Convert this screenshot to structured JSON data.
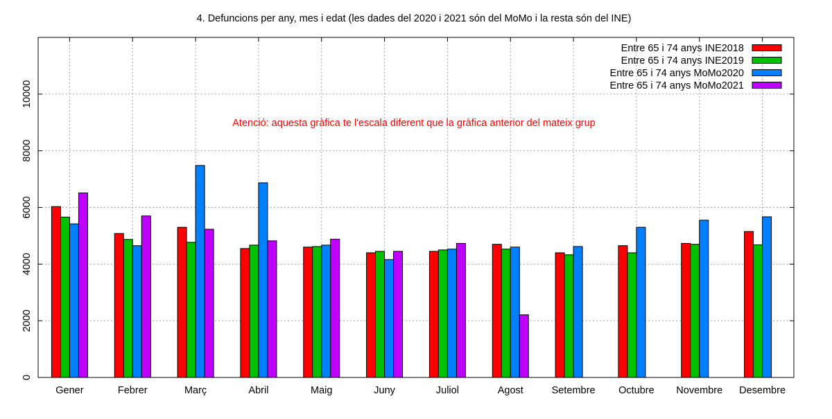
{
  "chart_data": {
    "type": "bar",
    "title": "4. Defuncions per any, mes i edat (les dades del 2020 i 2021 són del MoMo i la resta són del INE)",
    "annotation": "Atenció: aquesta gràfica te l'escala diferent que la gràfica anterior del mateix grup",
    "annotation_color": "#ff0000",
    "xlabel": "",
    "ylabel": "",
    "ylim": [
      0,
      12000
    ],
    "yticks": [
      0,
      2000,
      4000,
      6000,
      8000,
      10000
    ],
    "grid": true,
    "legend_position": "top-right",
    "categories": [
      "Gener",
      "Febrer",
      "Març",
      "Abril",
      "Maig",
      "Juny",
      "Juliol",
      "Agost",
      "Setembre",
      "Octubre",
      "Novembre",
      "Desembre"
    ],
    "series": [
      {
        "name": "Entre 65 i 74 anys INE2018",
        "color": "#ff0000",
        "values": [
          6030,
          5080,
          5300,
          4550,
          4600,
          4400,
          4450,
          4700,
          4400,
          4650,
          4730,
          5150
        ]
      },
      {
        "name": "Entre 65 i 74 anys INE2019",
        "color": "#00c000",
        "values": [
          5660,
          4870,
          4770,
          4670,
          4620,
          4450,
          4500,
          4530,
          4330,
          4400,
          4700,
          4680
        ]
      },
      {
        "name": "Entre 65 i 74 anys MoMo2020",
        "color": "#0080ff",
        "values": [
          5420,
          4650,
          7480,
          6870,
          4670,
          4160,
          4530,
          4600,
          4620,
          5300,
          5550,
          5670
        ]
      },
      {
        "name": "Entre 65 i 74 anys MoMo2021",
        "color": "#c000ff",
        "values": [
          6510,
          5700,
          5230,
          4820,
          4880,
          4450,
          4730,
          2210,
          null,
          null,
          null,
          null
        ]
      }
    ]
  }
}
